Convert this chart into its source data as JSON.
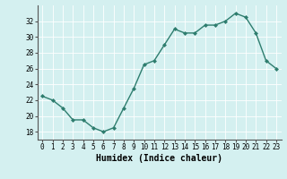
{
  "x": [
    0,
    1,
    2,
    3,
    4,
    5,
    6,
    7,
    8,
    9,
    10,
    11,
    12,
    13,
    14,
    15,
    16,
    17,
    18,
    19,
    20,
    21,
    22,
    23
  ],
  "y": [
    22.5,
    22.0,
    21.0,
    19.5,
    19.5,
    18.5,
    18.0,
    18.5,
    21.0,
    23.5,
    26.5,
    27.0,
    29.0,
    31.0,
    30.5,
    30.5,
    31.5,
    31.5,
    32.0,
    33.0,
    32.5,
    30.5,
    27.0,
    26.0
  ],
  "line_color": "#2e7d6e",
  "marker": "D",
  "markersize": 2.0,
  "linewidth": 1.0,
  "bg_color": "#d4f0f0",
  "grid_color": "#ffffff",
  "xlabel": "Humidex (Indice chaleur)",
  "xlabel_fontsize": 7,
  "ylim": [
    17,
    34
  ],
  "xlim": [
    -0.5,
    23.5
  ],
  "yticks": [
    18,
    20,
    22,
    24,
    26,
    28,
    30,
    32
  ],
  "xtick_labels": [
    "0",
    "1",
    "2",
    "3",
    "4",
    "5",
    "6",
    "7",
    "8",
    "9",
    "10",
    "11",
    "12",
    "13",
    "14",
    "15",
    "16",
    "17",
    "18",
    "19",
    "20",
    "21",
    "22",
    "23"
  ],
  "tick_fontsize": 5.5,
  "spine_color": "#555555"
}
